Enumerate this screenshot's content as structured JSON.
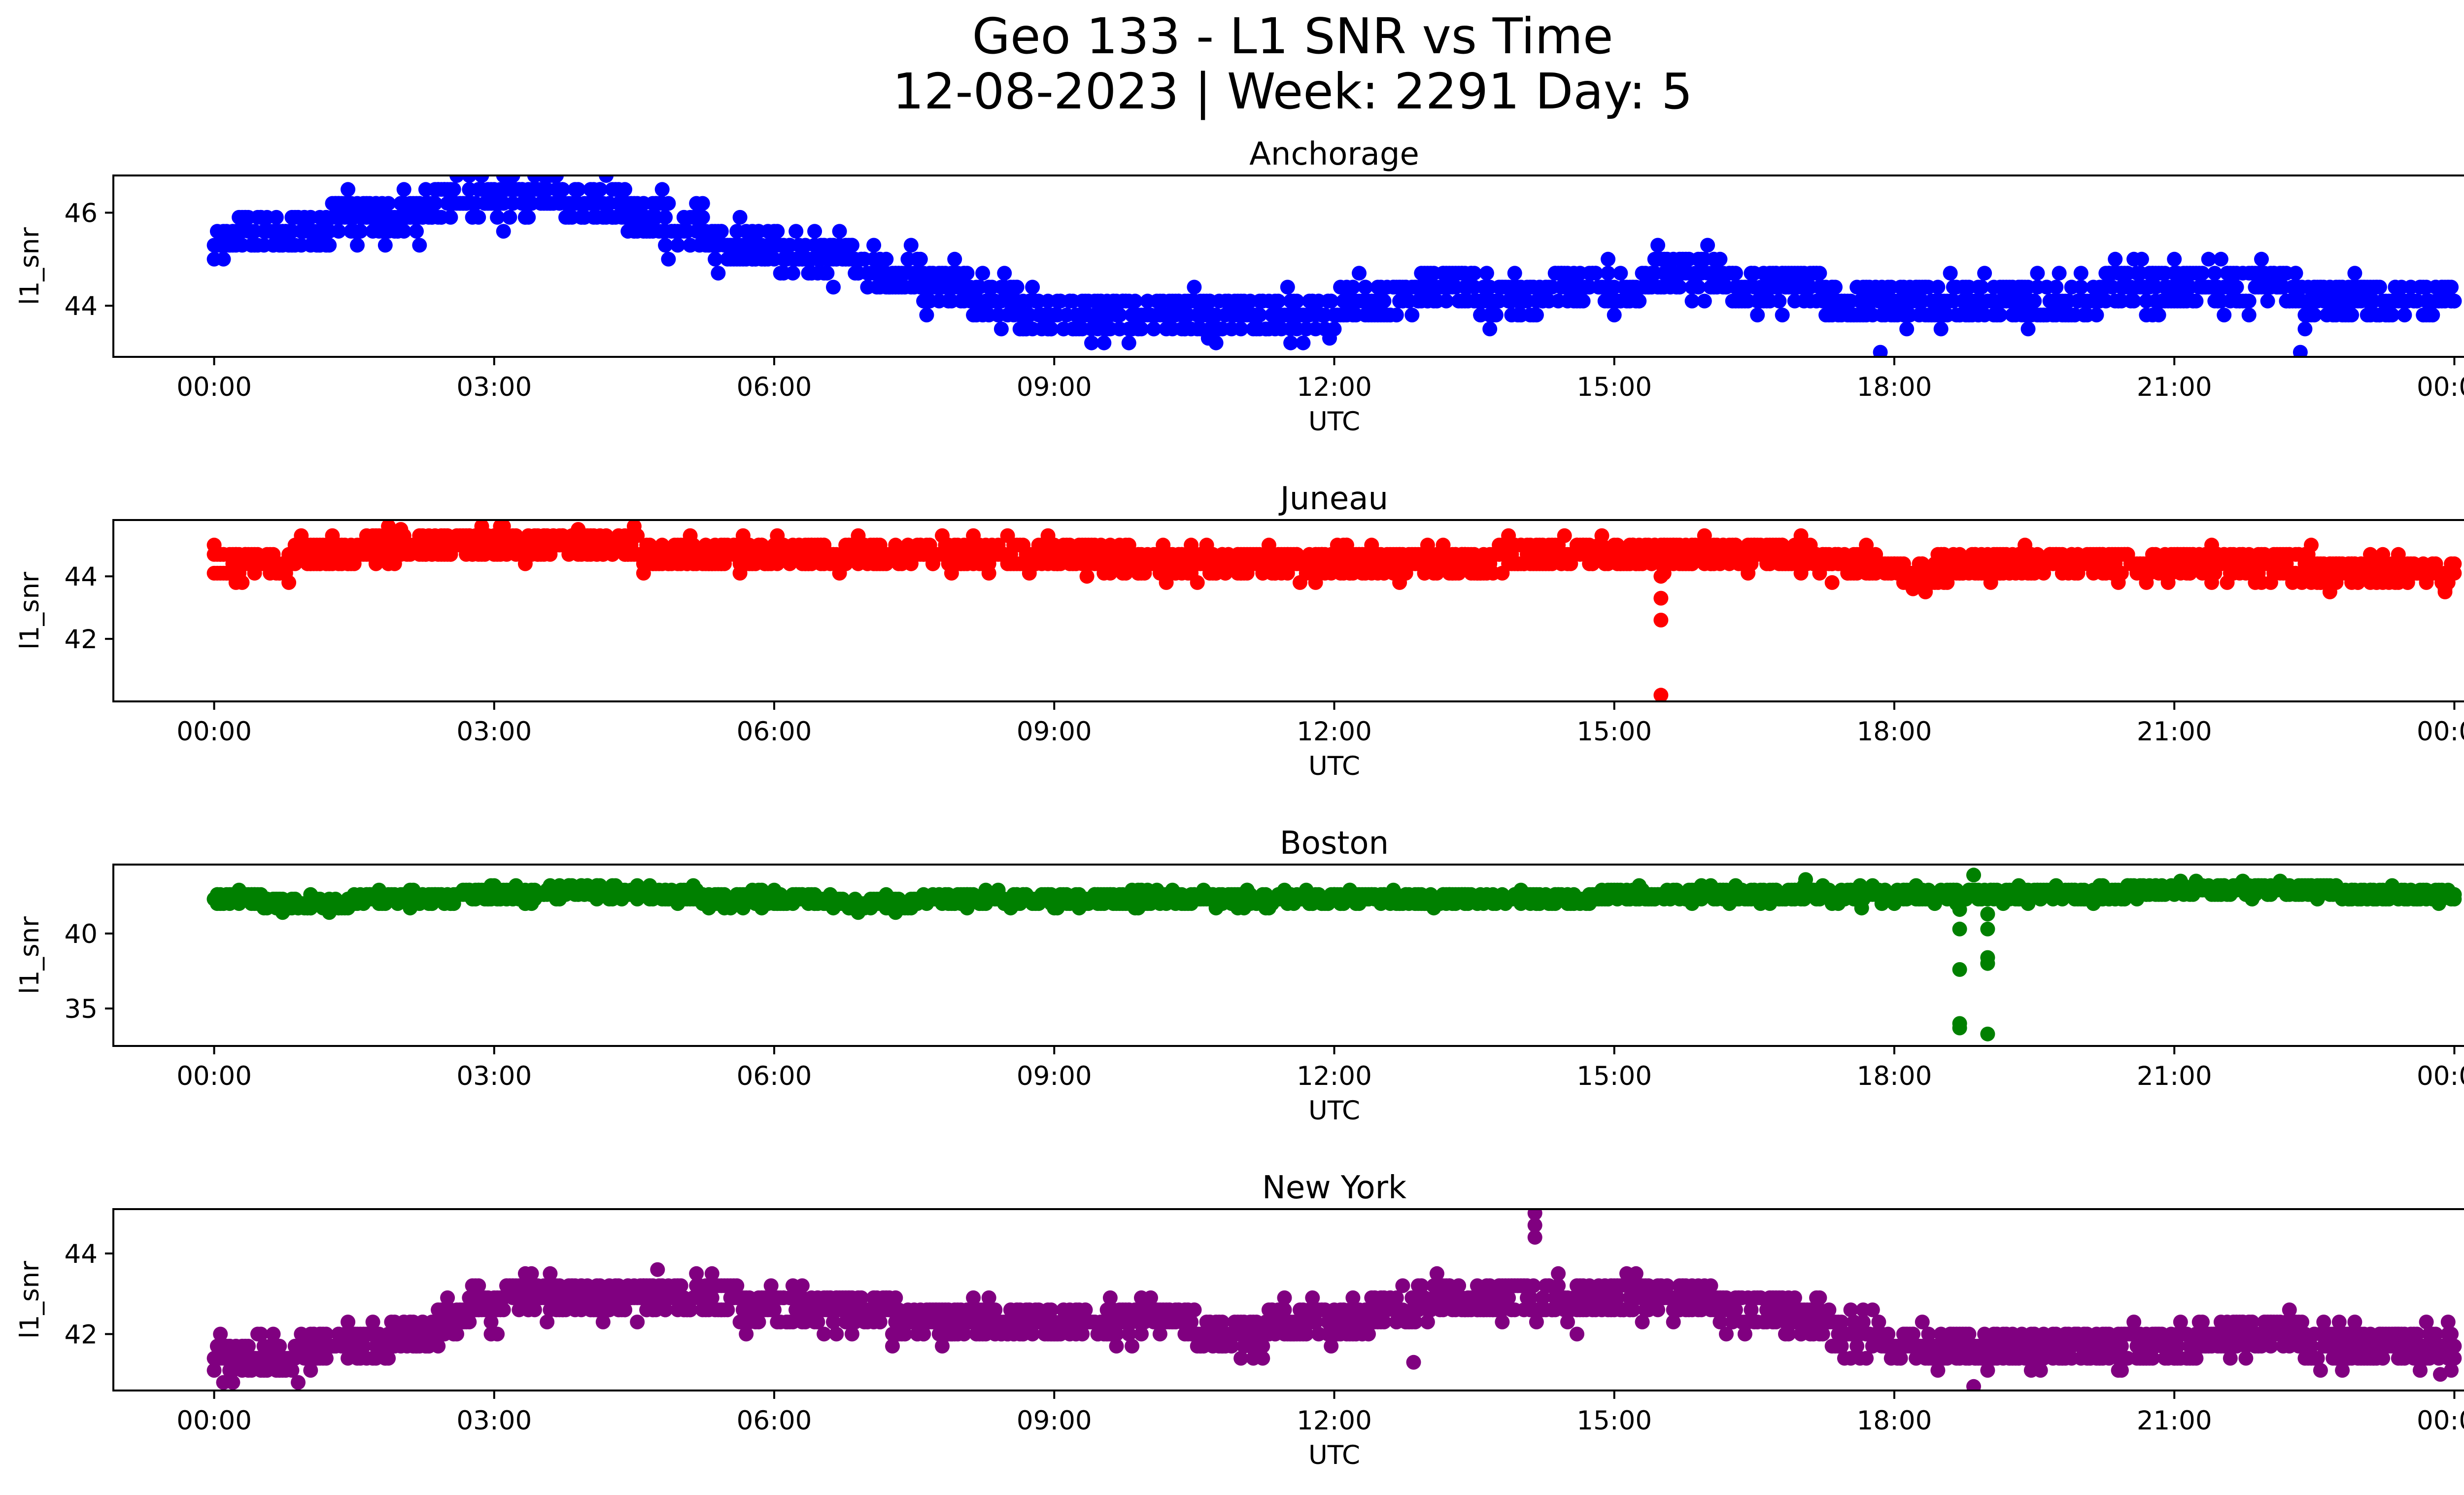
{
  "figure": {
    "title_line1": "Geo 133 - L1 SNR vs Time",
    "title_line2": "12-08-2023 | Week: 2291 Day: 5"
  },
  "chart_data": [
    {
      "type": "scatter",
      "title": "Anchorage",
      "xlabel": "UTC",
      "ylabel": "l1_snr",
      "color": "#0000ff",
      "xlim": [
        "00:00",
        "24:00"
      ],
      "ylim": [
        42.9,
        46.8
      ],
      "x_ticks": [
        "00:00",
        "03:00",
        "06:00",
        "09:00",
        "12:00",
        "15:00",
        "18:00",
        "21:00",
        "00:00"
      ],
      "y_ticks": [
        44,
        46
      ],
      "baseline": [
        [
          0,
          45.3
        ],
        [
          0.5,
          45.6
        ],
        [
          1.0,
          45.6
        ],
        [
          1.5,
          45.9
        ],
        [
          2.0,
          45.9
        ],
        [
          2.5,
          46.2
        ],
        [
          3.0,
          46.2
        ],
        [
          3.5,
          46.4
        ],
        [
          4.0,
          46.3
        ],
        [
          4.5,
          46.0
        ],
        [
          5.0,
          45.6
        ],
        [
          5.5,
          45.3
        ],
        [
          6.0,
          45.2
        ],
        [
          6.5,
          45.0
        ],
        [
          7.0,
          44.8
        ],
        [
          7.5,
          44.6
        ],
        [
          8.0,
          44.3
        ],
        [
          8.5,
          44.0
        ],
        [
          9.0,
          43.8
        ],
        [
          10.0,
          43.7
        ],
        [
          11.0,
          43.7
        ],
        [
          12.0,
          43.9
        ],
        [
          12.5,
          44.1
        ],
        [
          13.0,
          44.3
        ],
        [
          14.0,
          44.2
        ],
        [
          15.0,
          44.4
        ],
        [
          15.5,
          44.6
        ],
        [
          16.0,
          44.6
        ],
        [
          17.0,
          44.3
        ],
        [
          18.0,
          44.1
        ],
        [
          19.0,
          44.1
        ],
        [
          20.0,
          44.2
        ],
        [
          21.0,
          44.4
        ],
        [
          22.0,
          44.4
        ],
        [
          22.5,
          44.2
        ],
        [
          24.0,
          44.1
        ]
      ],
      "spread": 0.3,
      "levels": [
        0.3
      ],
      "outliers": [
        [
          17.85,
          43.0
        ],
        [
          22.35,
          43.0
        ],
        [
          20.65,
          45.0
        ],
        [
          10.65,
          43.3
        ],
        [
          11.95,
          43.3
        ]
      ]
    },
    {
      "type": "scatter",
      "title": "Juneau",
      "xlabel": "UTC",
      "ylabel": "l1_snr",
      "color": "#ff0000",
      "xlim": [
        "00:00",
        "24:00"
      ],
      "ylim": [
        40.0,
        45.8
      ],
      "x_ticks": [
        "00:00",
        "03:00",
        "06:00",
        "09:00",
        "12:00",
        "15:00",
        "18:00",
        "21:00",
        "00:00"
      ],
      "y_ticks": [
        42,
        44
      ],
      "baseline": [
        [
          0,
          44.3
        ],
        [
          1.0,
          44.6
        ],
        [
          2.0,
          45.0
        ],
        [
          3.0,
          45.0
        ],
        [
          4.0,
          44.9
        ],
        [
          5.0,
          44.8
        ],
        [
          6.0,
          44.8
        ],
        [
          7.0,
          44.7
        ],
        [
          8.0,
          44.7
        ],
        [
          9.0,
          44.6
        ],
        [
          10.0,
          44.5
        ],
        [
          11.0,
          44.3
        ],
        [
          12.0,
          44.3
        ],
        [
          13.0,
          44.4
        ],
        [
          14.0,
          44.6
        ],
        [
          15.0,
          44.8
        ],
        [
          16.0,
          44.8
        ],
        [
          17.0,
          44.6
        ],
        [
          18.0,
          44.2
        ],
        [
          19.0,
          44.3
        ],
        [
          20.0,
          44.4
        ],
        [
          21.0,
          44.3
        ],
        [
          22.0,
          44.3
        ],
        [
          23.0,
          44.2
        ],
        [
          24.0,
          44.2
        ]
      ],
      "spread": 0.3,
      "levels": [
        0.3
      ],
      "outliers": [
        [
          15.5,
          44.0
        ],
        [
          15.5,
          43.3
        ],
        [
          15.5,
          42.6
        ],
        [
          15.5,
          40.2
        ],
        [
          2.0,
          45.5
        ],
        [
          3.9,
          45.5
        ],
        [
          17.0,
          45.3
        ],
        [
          18.2,
          43.6
        ],
        [
          23.9,
          43.6
        ],
        [
          9.35,
          44.0
        ],
        [
          10.2,
          44.0
        ]
      ]
    },
    {
      "type": "scatter",
      "title": "Boston",
      "xlabel": "UTC",
      "ylabel": "l1_snr",
      "color": "#008000",
      "xlim": [
        "00:00",
        "24:00"
      ],
      "ylim": [
        32.5,
        44.6
      ],
      "x_ticks": [
        "00:00",
        "03:00",
        "06:00",
        "09:00",
        "12:00",
        "15:00",
        "18:00",
        "21:00",
        "00:00"
      ],
      "y_ticks": [
        35,
        40
      ],
      "baseline": [
        [
          0,
          42.2
        ],
        [
          1.0,
          42.1
        ],
        [
          2.0,
          42.2
        ],
        [
          3.0,
          42.6
        ],
        [
          4.0,
          42.8
        ],
        [
          5.0,
          42.5
        ],
        [
          6.0,
          42.2
        ],
        [
          7.0,
          42.1
        ],
        [
          8.0,
          42.2
        ],
        [
          9.0,
          42.4
        ],
        [
          10.0,
          42.3
        ],
        [
          11.0,
          42.2
        ],
        [
          12.0,
          42.3
        ],
        [
          13.0,
          42.2
        ],
        [
          14.0,
          42.2
        ],
        [
          15.0,
          42.5
        ],
        [
          16.0,
          42.6
        ],
        [
          17.0,
          42.7
        ],
        [
          18.0,
          42.6
        ],
        [
          19.0,
          42.7
        ],
        [
          20.0,
          42.7
        ],
        [
          21.0,
          42.8
        ],
        [
          22.0,
          42.9
        ],
        [
          23.0,
          42.7
        ],
        [
          24.0,
          42.6
        ]
      ],
      "spread": 0.3,
      "levels": [
        0.3
      ],
      "outliers": [
        [
          18.7,
          41.6
        ],
        [
          18.7,
          40.3
        ],
        [
          18.7,
          37.6
        ],
        [
          18.7,
          34.0
        ],
        [
          18.7,
          33.7
        ],
        [
          19.0,
          41.3
        ],
        [
          19.0,
          40.3
        ],
        [
          19.0,
          38.4
        ],
        [
          19.0,
          38.0
        ],
        [
          19.0,
          33.3
        ],
        [
          18.85,
          43.9
        ],
        [
          17.65,
          41.7
        ],
        [
          17.05,
          43.6
        ]
      ]
    },
    {
      "type": "scatter",
      "title": "New York",
      "xlabel": "UTC",
      "ylabel": "l1_snr",
      "color": "#800080",
      "xlim": [
        "00:00",
        "24:00"
      ],
      "ylim": [
        40.6,
        45.1
      ],
      "x_ticks": [
        "00:00",
        "03:00",
        "06:00",
        "09:00",
        "12:00",
        "15:00",
        "18:00",
        "21:00",
        "00:00"
      ],
      "y_ticks": [
        42,
        44
      ],
      "baseline": [
        [
          0,
          41.3
        ],
        [
          0.5,
          41.3
        ],
        [
          1.0,
          41.6
        ],
        [
          1.5,
          41.6
        ],
        [
          2.0,
          41.9
        ],
        [
          2.5,
          42.3
        ],
        [
          3.0,
          42.7
        ],
        [
          3.5,
          42.9
        ],
        [
          4.0,
          43.0
        ],
        [
          4.5,
          43.0
        ],
        [
          5.0,
          42.9
        ],
        [
          5.5,
          42.8
        ],
        [
          6.0,
          42.6
        ],
        [
          7.0,
          42.5
        ],
        [
          8.0,
          42.3
        ],
        [
          9.0,
          42.2
        ],
        [
          10.0,
          42.2
        ],
        [
          11.0,
          42.1
        ],
        [
          12.0,
          42.3
        ],
        [
          12.5,
          42.5
        ],
        [
          13.0,
          42.8
        ],
        [
          14.0,
          43.0
        ],
        [
          15.0,
          43.0
        ],
        [
          16.0,
          42.8
        ],
        [
          17.0,
          42.4
        ],
        [
          17.5,
          42.0
        ],
        [
          18.0,
          41.8
        ],
        [
          19.0,
          41.6
        ],
        [
          20.0,
          41.7
        ],
        [
          21.0,
          41.8
        ],
        [
          22.0,
          42.0
        ],
        [
          22.5,
          41.8
        ],
        [
          23.0,
          41.7
        ],
        [
          24.0,
          41.6
        ]
      ],
      "spread": 0.3,
      "levels": [
        0.3
      ],
      "outliers": [
        [
          14.15,
          45.0
        ],
        [
          14.15,
          44.7
        ],
        [
          14.15,
          44.4
        ],
        [
          4.75,
          43.6
        ],
        [
          12.85,
          41.3
        ],
        [
          18.85,
          40.7
        ],
        [
          23.85,
          41.0
        ],
        [
          14.6,
          42.0
        ]
      ]
    }
  ]
}
